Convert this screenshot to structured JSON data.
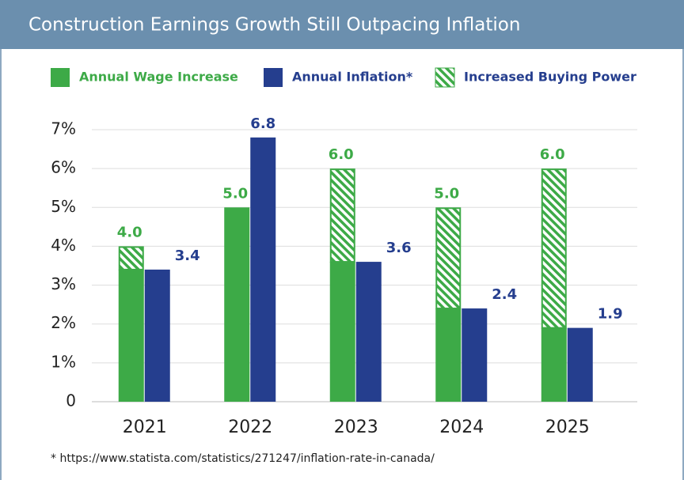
{
  "chart_data": {
    "type": "bar",
    "title": "Construction Earnings Growth Still Outpacing Inflation",
    "categories": [
      "2021",
      "2022",
      "2023",
      "2024",
      "2025"
    ],
    "series": [
      {
        "name": "Annual Wage Increase",
        "color": "#3daa47",
        "values": [
          4.0,
          5.0,
          6.0,
          5.0,
          6.0
        ],
        "value_labels": [
          "4.0",
          "5.0",
          "6.0",
          "5.0",
          "6.0"
        ]
      },
      {
        "name": "Annual Inflation*",
        "color": "#253e8e",
        "values": [
          3.4,
          6.8,
          3.6,
          2.4,
          1.9
        ],
        "value_labels": [
          "3.4",
          "6.8",
          "3.6",
          "2.4",
          "1.9"
        ]
      }
    ],
    "hatch_legend": {
      "name": "Increased Buying Power",
      "color": "#3daa47"
    },
    "ylim": [
      0,
      7
    ],
    "yticks": [
      0,
      {
        "value": 1,
        "label": "1%"
      },
      {
        "value": 2,
        "label": "2%"
      },
      {
        "value": 3,
        "label": "3%"
      },
      {
        "value": 4,
        "label": "4%"
      },
      {
        "value": 5,
        "label": "5%"
      },
      {
        "value": 6,
        "label": "6%"
      },
      {
        "value": 7,
        "label": "7%"
      }
    ],
    "grid": true,
    "footnote": "* https://www.statista.com/statistics/271247/inflation-rate-in-canada/"
  }
}
